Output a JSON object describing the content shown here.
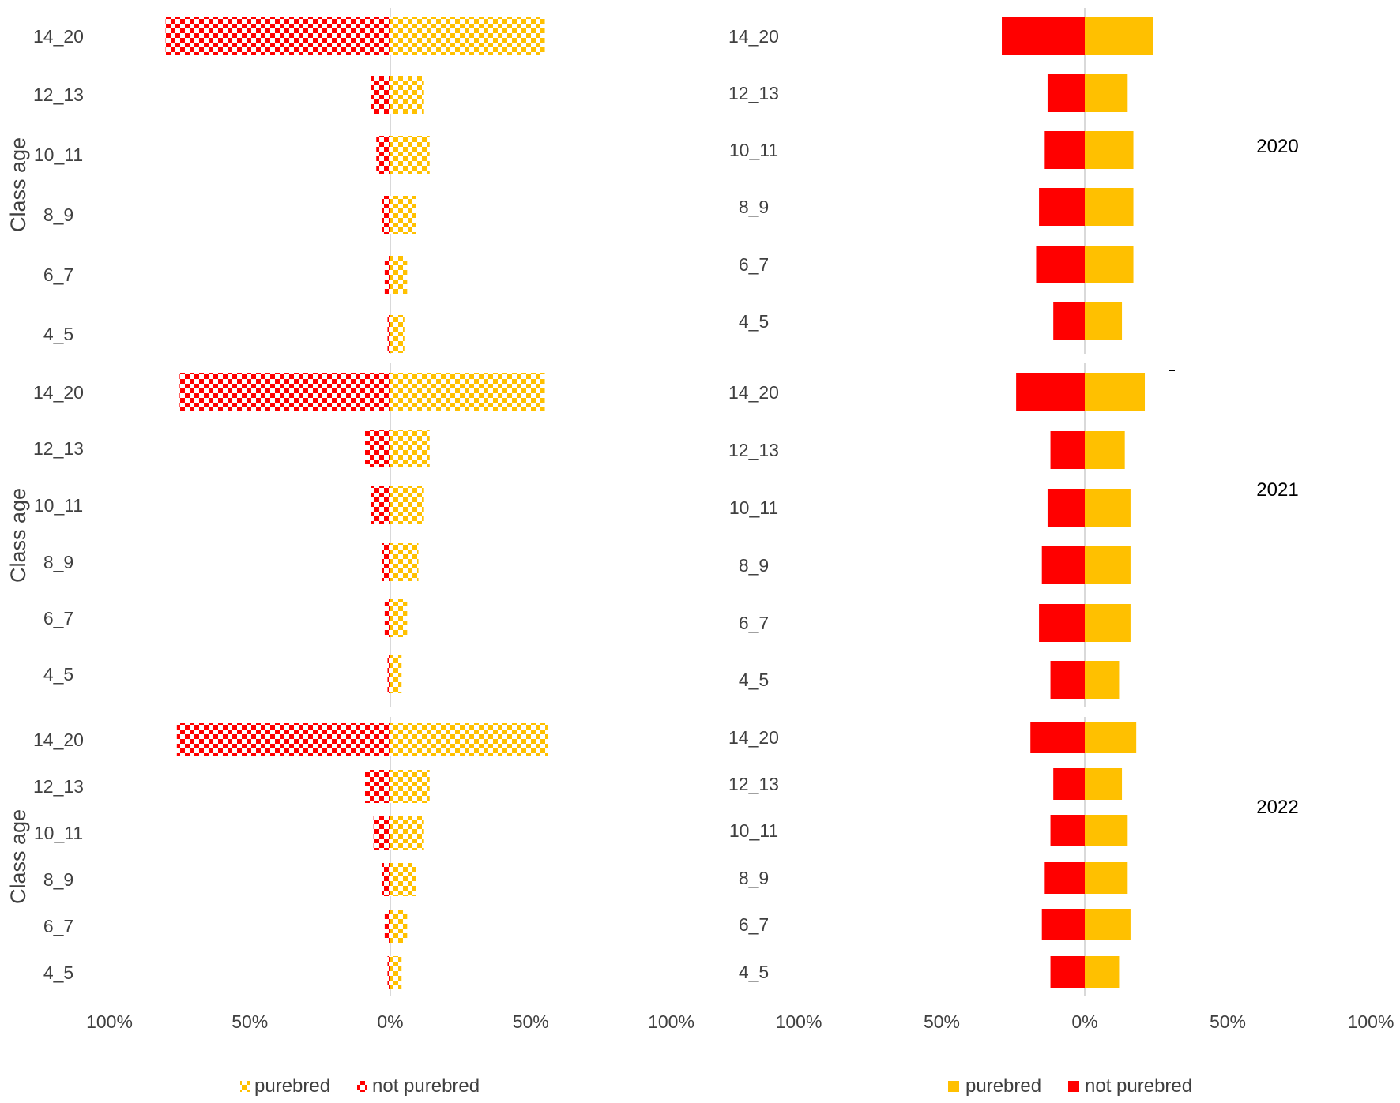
{
  "colors": {
    "purebred": "#FFC000",
    "not_purebred": "#FF0000",
    "axis": "#D9D9D9",
    "text": "#404040"
  },
  "chart_data": [
    {
      "type": "bar",
      "orientation": "horizontal-diverging",
      "pattern": "checkerboard",
      "ylabel": "Class age",
      "x_ticks": [
        "100%",
        "50%",
        "0%",
        "50%",
        "100%"
      ],
      "xlim": [
        -100,
        100
      ],
      "legend": {
        "position": "bottom",
        "items": [
          "purebred",
          "not purebred"
        ]
      },
      "panels": [
        {
          "year": "2020",
          "categories": [
            "14_20",
            "12_13",
            "10_11",
            "8_9",
            "6_7",
            "4_5"
          ],
          "series": [
            {
              "name": "not purebred",
              "values": [
                -80,
                -7,
                -5,
                -3,
                -2,
                -1
              ]
            },
            {
              "name": "purebred",
              "values": [
                55,
                12,
                14,
                9,
                6,
                5
              ]
            }
          ]
        },
        {
          "year": "2021",
          "categories": [
            "14_20",
            "12_13",
            "10_11",
            "8_9",
            "6_7",
            "4_5"
          ],
          "series": [
            {
              "name": "not purebred",
              "values": [
                -75,
                -9,
                -7,
                -3,
                -2,
                -1
              ]
            },
            {
              "name": "purebred",
              "values": [
                55,
                14,
                12,
                10,
                6,
                4
              ]
            }
          ]
        },
        {
          "year": "2022",
          "categories": [
            "14_20",
            "12_13",
            "10_11",
            "8_9",
            "6_7",
            "4_5"
          ],
          "series": [
            {
              "name": "not purebred",
              "values": [
                -76,
                -9,
                -6,
                -3,
                -2,
                -1
              ]
            },
            {
              "name": "purebred",
              "values": [
                56,
                14,
                12,
                9,
                6,
                4
              ]
            }
          ]
        }
      ]
    },
    {
      "type": "bar",
      "orientation": "horizontal-diverging",
      "pattern": "solid",
      "x_ticks": [
        "100%",
        "50%",
        "0%",
        "50%",
        "100%"
      ],
      "xlim": [
        -100,
        100
      ],
      "legend": {
        "position": "bottom",
        "items": [
          "purebred",
          "not purebred"
        ]
      },
      "panels": [
        {
          "year": "2020",
          "categories": [
            "14_20",
            "12_13",
            "10_11",
            "8_9",
            "6_7",
            "4_5"
          ],
          "series": [
            {
              "name": "not purebred",
              "values": [
                -29,
                -13,
                -14,
                -16,
                -17,
                -11
              ]
            },
            {
              "name": "purebred",
              "values": [
                24,
                15,
                17,
                17,
                17,
                13
              ]
            }
          ]
        },
        {
          "year": "2021",
          "categories": [
            "14_20",
            "12_13",
            "10_11",
            "8_9",
            "6_7",
            "4_5"
          ],
          "series": [
            {
              "name": "not purebred",
              "values": [
                -24,
                -12,
                -13,
                -15,
                -16,
                -12
              ]
            },
            {
              "name": "purebred",
              "values": [
                21,
                14,
                16,
                16,
                16,
                12
              ]
            }
          ]
        },
        {
          "year": "2022",
          "categories": [
            "14_20",
            "12_13",
            "10_11",
            "8_9",
            "6_7",
            "4_5"
          ],
          "series": [
            {
              "name": "not purebred",
              "values": [
                -19,
                -11,
                -12,
                -14,
                -15,
                -12
              ]
            },
            {
              "name": "purebred",
              "values": [
                18,
                13,
                15,
                15,
                16,
                12
              ]
            }
          ]
        }
      ]
    }
  ]
}
